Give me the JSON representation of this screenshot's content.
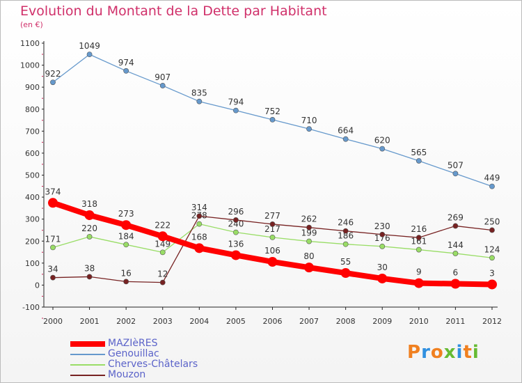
{
  "chart_data": {
    "type": "line",
    "title": "Evolution du Montant de la Dette par Habitant",
    "subtitle": "(en €)",
    "x": [
      "2000",
      "2001",
      "2002",
      "2003",
      "2004",
      "2005",
      "2006",
      "2007",
      "2008",
      "2009",
      "2010",
      "2011",
      "2012"
    ],
    "ylim": [
      -100,
      1100
    ],
    "yticks": [
      -100,
      0,
      100,
      200,
      300,
      400,
      500,
      600,
      700,
      800,
      900,
      1000,
      1100
    ],
    "grid": false,
    "legend_position": "bottom-left",
    "series": [
      {
        "name": "MAZIèRES",
        "color": "#ff0000",
        "values": [
          374,
          318,
          273,
          222,
          168,
          136,
          106,
          80,
          55,
          30,
          9,
          6,
          3
        ]
      },
      {
        "name": "Genouillac",
        "color": "#6699cc",
        "values": [
          922,
          1049,
          974,
          907,
          835,
          794,
          752,
          710,
          664,
          620,
          565,
          507,
          449
        ]
      },
      {
        "name": "Cherves-Châtelars",
        "color": "#99dd66",
        "values": [
          171,
          220,
          184,
          149,
          278,
          240,
          217,
          199,
          186,
          176,
          161,
          144,
          124
        ]
      },
      {
        "name": "Mouzon",
        "color": "#772222",
        "values": [
          34,
          38,
          16,
          12,
          314,
          296,
          277,
          262,
          246,
          230,
          216,
          269,
          250
        ]
      }
    ]
  },
  "logo": {
    "text": "Proxiti",
    "colors": [
      "#f08020",
      "#3090e0",
      "#f08020",
      "#66bb33",
      "#3090e0",
      "#f08020",
      "#66bb33"
    ]
  }
}
